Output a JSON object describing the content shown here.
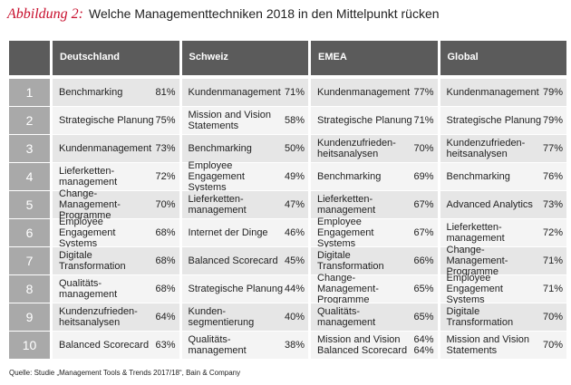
{
  "header": {
    "label": "Abbildung 2:",
    "title": "Welche Managementtechniken 2018 in den Mittelpunkt rücken"
  },
  "table": {
    "columns": [
      "Deutschland",
      "Schweiz",
      "EMEA",
      "Global"
    ],
    "rows": [
      {
        "rank": "1",
        "cells": [
          {
            "label": "Benchmarking",
            "value": "81%"
          },
          {
            "label": "Kundenmanagement",
            "value": "71%"
          },
          {
            "label": "Kundenmanagement",
            "value": "77%"
          },
          {
            "label": "Kundenmanagement",
            "value": "79%"
          }
        ]
      },
      {
        "rank": "2",
        "cells": [
          {
            "label": "Strategische Planung",
            "value": "75%"
          },
          {
            "label": "Mission and Vision\nStatements",
            "value": "58%"
          },
          {
            "label": "Strategische Planung",
            "value": "71%"
          },
          {
            "label": "Strategische Planung",
            "value": "79%"
          }
        ]
      },
      {
        "rank": "3",
        "cells": [
          {
            "label": "Kundenmanagement",
            "value": "73%"
          },
          {
            "label": "Benchmarking",
            "value": "50%"
          },
          {
            "label": "Kundenzufrieden-\nheitsanalysen",
            "value": "70%"
          },
          {
            "label": "Kundenzufrieden-\nheitsanalysen",
            "value": "77%"
          }
        ]
      },
      {
        "rank": "4",
        "cells": [
          {
            "label": "Lieferketten-\nmanagement",
            "value": "72%"
          },
          {
            "label": "Employee Engagement\nSystems",
            "value": "49%"
          },
          {
            "label": "Benchmarking",
            "value": "69%"
          },
          {
            "label": "Benchmarking",
            "value": "76%"
          }
        ]
      },
      {
        "rank": "5",
        "cells": [
          {
            "label": "Change-Management-\nProgramme",
            "value": "70%"
          },
          {
            "label": "Lieferketten-\nmanagement",
            "value": "47%"
          },
          {
            "label": "Lieferketten-\nmanagement",
            "value": "67%"
          },
          {
            "label": "Advanced Analytics",
            "value": "73%"
          }
        ]
      },
      {
        "rank": "6",
        "cells": [
          {
            "label": "Employee Engagement\nSystems",
            "value": "68%"
          },
          {
            "label": "Internet der Dinge",
            "value": "46%"
          },
          {
            "label": "Employee Engagement\nSystems",
            "value": "67%"
          },
          {
            "label": "Lieferketten-\nmanagement",
            "value": "72%"
          }
        ]
      },
      {
        "rank": "7",
        "cells": [
          {
            "label": "Digitale\nTransformation",
            "value": "68%"
          },
          {
            "label": "Balanced Scorecard",
            "value": "45%"
          },
          {
            "label": "Digitale\nTransformation",
            "value": "66%"
          },
          {
            "label": "Change-Management-\nProgramme",
            "value": "71%"
          }
        ]
      },
      {
        "rank": "8",
        "cells": [
          {
            "label": "Qualitäts-\nmanagement",
            "value": "68%"
          },
          {
            "label": "Strategische Planung",
            "value": "44%"
          },
          {
            "label": "Change-Management-\nProgramme",
            "value": "65%"
          },
          {
            "label": "Employee Engagement\nSystems",
            "value": "71%"
          }
        ]
      },
      {
        "rank": "9",
        "cells": [
          {
            "label": "Kundenzufrieden-\nheitsanalysen",
            "value": "64%"
          },
          {
            "label": "Kunden-\nsegmentierung",
            "value": "40%"
          },
          {
            "label": "Qualitäts-\nmanagement",
            "value": "65%"
          },
          {
            "label": "Digitale\nTransformation",
            "value": "70%"
          }
        ]
      },
      {
        "rank": "10",
        "cells": [
          {
            "label": "Balanced Scorecard",
            "value": "63%"
          },
          {
            "label": "Qualitäts-\nmanagement",
            "value": "38%"
          },
          {
            "label": "Mission and Vision\nBalanced Scorecard",
            "value": "64%\n64%"
          },
          {
            "label": "Mission and Vision\nStatements",
            "value": "70%"
          }
        ]
      }
    ]
  },
  "source": "Quelle: Studie „Management Tools & Trends 2017/18“, Bain & Company"
}
